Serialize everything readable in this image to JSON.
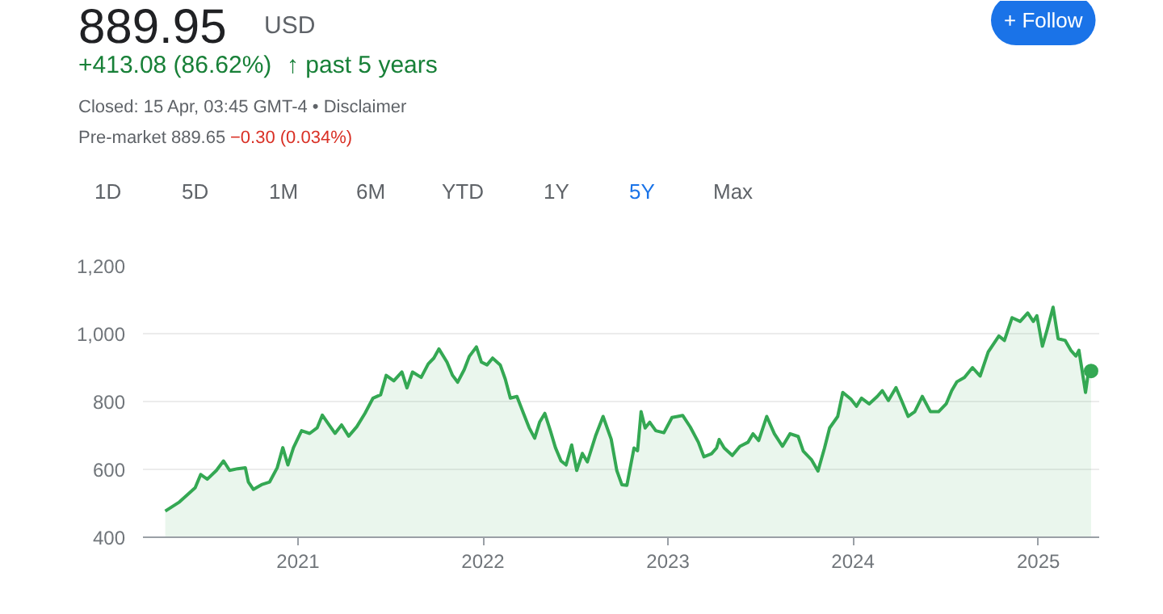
{
  "chart_data": {
    "type": "area",
    "title": "889.95",
    "subtitle": "USD",
    "annotations": [
      "+413.08 (86.62%)",
      "↑ past 5 years",
      "Closed: 15 Apr, 03:45 GMT-4 • Disclaimer",
      "Pre-market 889.65",
      "−0.30 (0.034%)",
      "1D",
      "5D",
      "1M",
      "6M",
      "YTD",
      "1Y",
      "5Y",
      "Max",
      "+ Follow"
    ],
    "x": [
      "2020-04-14",
      "2020-05-12",
      "2020-06-12",
      "2020-06-23",
      "2020-07-06",
      "2020-07-24",
      "2020-08-07",
      "2020-08-19",
      "2020-09-04",
      "2020-09-19",
      "2020-09-25",
      "2020-10-05",
      "2020-10-21",
      "2020-11-06",
      "2020-11-21",
      "2020-12-02",
      "2020-12-12",
      "2020-12-23",
      "2021-01-08",
      "2021-01-24",
      "2021-02-08",
      "2021-02-18",
      "2021-03-01",
      "2021-03-15",
      "2021-03-28",
      "2021-04-11",
      "2021-04-27",
      "2021-05-13",
      "2021-05-29",
      "2021-06-13",
      "2021-06-24",
      "2021-07-09",
      "2021-07-25",
      "2021-08-04",
      "2021-08-15",
      "2021-09-01",
      "2021-09-15",
      "2021-09-26",
      "2021-10-06",
      "2021-10-22",
      "2021-11-02",
      "2021-11-12",
      "2021-11-25",
      "2021-12-05",
      "2021-12-19",
      "2021-12-29",
      "2022-01-09",
      "2022-01-20",
      "2022-02-04",
      "2022-02-14",
      "2022-02-24",
      "2022-03-09",
      "2022-03-22",
      "2022-04-02",
      "2022-04-13",
      "2022-04-23",
      "2022-05-03",
      "2022-05-14",
      "2022-05-24",
      "2022-06-04",
      "2022-06-14",
      "2022-06-25",
      "2022-07-05",
      "2022-07-16",
      "2022-07-26",
      "2022-08-11",
      "2022-08-26",
      "2022-09-11",
      "2022-09-22",
      "2022-10-02",
      "2022-10-12",
      "2022-10-26",
      "2022-11-02",
      "2022-11-09",
      "2022-11-17",
      "2022-11-26",
      "2022-12-08",
      "2022-12-24",
      "2023-01-09",
      "2023-01-20",
      "2023-01-30",
      "2023-02-14",
      "2023-03-02",
      "2023-03-13",
      "2023-03-28",
      "2023-04-07",
      "2023-04-12",
      "2023-04-22",
      "2023-05-08",
      "2023-05-23",
      "2023-06-08",
      "2023-06-18",
      "2023-06-29",
      "2023-07-15",
      "2023-07-30",
      "2023-08-15",
      "2023-08-30",
      "2023-09-15",
      "2023-09-25",
      "2023-10-11",
      "2023-10-24",
      "2023-11-06",
      "2023-11-16",
      "2023-12-02",
      "2023-12-12",
      "2023-12-28",
      "2024-01-08",
      "2024-01-18",
      "2024-02-02",
      "2024-02-18",
      "2024-02-28",
      "2024-03-11",
      "2024-03-26",
      "2024-04-06",
      "2024-04-19",
      "2024-05-02",
      "2024-05-17",
      "2024-06-02",
      "2024-06-18",
      "2024-07-03",
      "2024-07-14",
      "2024-07-24",
      "2024-08-08",
      "2024-08-24",
      "2024-09-08",
      "2024-09-24",
      "2024-10-15",
      "2024-10-26",
      "2024-11-10",
      "2024-11-26",
      "2024-12-11",
      "2024-12-22",
      "2024-12-29",
      "2025-01-09",
      "2025-01-18",
      "2025-01-30",
      "2025-02-09",
      "2025-02-23",
      "2025-03-06",
      "2025-03-16",
      "2025-03-22",
      "2025-04-04",
      "2025-04-11",
      "2025-04-15"
    ],
    "series": [
      {
        "color": "#34a853",
        "values": [
          477,
          504,
          546,
          585,
          571,
          597,
          625,
          597,
          602,
          605,
          563,
          541,
          555,
          563,
          605,
          664,
          613,
          664,
          714,
          706,
          723,
          760,
          736,
          706,
          731,
          698,
          726,
          765,
          810,
          820,
          877,
          861,
          887,
          840,
          887,
          871,
          911,
          928,
          955,
          916,
          877,
          857,
          894,
          933,
          961,
          916,
          908,
          928,
          908,
          866,
          810,
          815,
          765,
          723,
          692,
          740,
          765,
          714,
          664,
          625,
          613,
          672,
          597,
          647,
          622,
          698,
          756,
          689,
          597,
          555,
          553,
          663,
          655,
          770,
          722,
          739,
          714,
          708,
          753,
          756,
          759,
          725,
          680,
          637,
          646,
          663,
          688,
          663,
          641,
          668,
          680,
          705,
          685,
          756,
          705,
          668,
          705,
          697,
          654,
          629,
          595,
          663,
          722,
          756,
          827,
          807,
          786,
          810,
          793,
          815,
          832,
          803,
          841,
          803,
          756,
          770,
          815,
          770,
          770,
          793,
          832,
          858,
          871,
          900,
          875,
          946,
          993,
          980,
          1047,
          1036,
          1061,
          1036,
          1053,
          963,
          1010,
          1078,
          985,
          980,
          951,
          934,
          951,
          827,
          900,
          890
        ]
      }
    ],
    "xlim": [
      "2020-03-01",
      "2025-05-01"
    ],
    "ylim": [
      400,
      1200
    ],
    "xticks": [
      {
        "value": "2021-01-01",
        "label": "2021"
      },
      {
        "value": "2022-01-01",
        "label": "2022"
      },
      {
        "value": "2023-01-01",
        "label": "2023"
      },
      {
        "value": "2024-01-01",
        "label": "2024"
      },
      {
        "value": "2025-01-01",
        "label": "2025"
      }
    ],
    "yticks": [
      {
        "value": 400,
        "label": "400"
      },
      {
        "value": 600,
        "label": "600"
      },
      {
        "value": 800,
        "label": "800"
      },
      {
        "value": 1000,
        "label": "1,000"
      },
      {
        "value": 1200,
        "label": "1,200"
      }
    ],
    "grid": "y"
  }
}
